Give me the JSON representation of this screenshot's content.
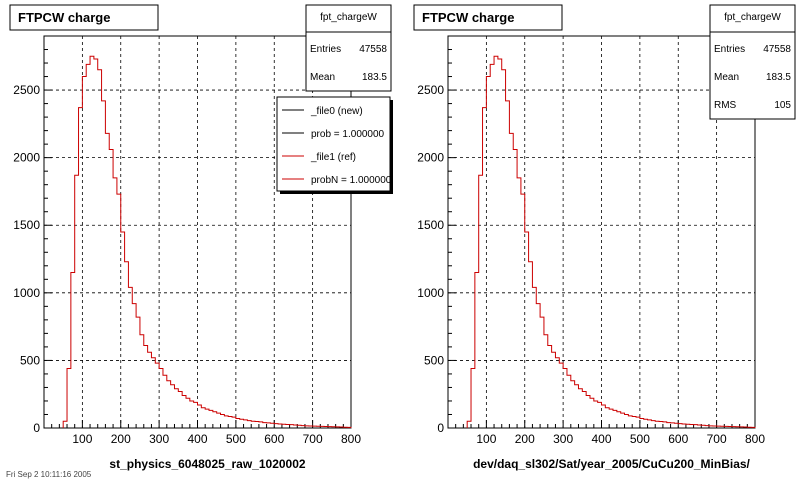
{
  "chart_data": [
    {
      "type": "histogram",
      "title": "FTPCW charge",
      "xlabel": "st_physics_6048025_raw_1020002",
      "ylabel": "",
      "xlim": [
        0,
        800
      ],
      "ylim": [
        0,
        2900
      ],
      "xticks": [
        100,
        200,
        300,
        400,
        500,
        600,
        700,
        800
      ],
      "yticks": [
        0,
        500,
        1000,
        1500,
        2000,
        2500
      ],
      "grid": true,
      "bin_width": 10,
      "series": [
        {
          "name": "_file1 (ref)",
          "color": "#cc0000",
          "x": [
            50,
            60,
            70,
            80,
            90,
            100,
            110,
            120,
            130,
            140,
            150,
            160,
            170,
            180,
            190,
            200,
            210,
            220,
            230,
            240,
            250,
            260,
            270,
            280,
            290,
            300,
            310,
            320,
            330,
            340,
            350,
            360,
            370,
            380,
            390,
            400,
            410,
            420,
            430,
            440,
            450,
            460,
            470,
            480,
            490,
            500,
            510,
            520,
            530,
            540,
            550,
            560,
            570,
            580,
            590,
            600,
            610,
            620,
            630,
            640,
            650,
            660,
            670,
            680,
            690,
            700,
            710,
            720,
            730,
            740,
            750,
            760,
            770,
            780,
            790
          ],
          "values": [
            50,
            440,
            1150,
            1870,
            2370,
            2600,
            2690,
            2750,
            2730,
            2650,
            2420,
            2180,
            2060,
            1850,
            1730,
            1450,
            1230,
            1040,
            920,
            820,
            690,
            610,
            560,
            520,
            480,
            440,
            390,
            350,
            320,
            290,
            270,
            240,
            220,
            200,
            190,
            170,
            150,
            140,
            130,
            120,
            110,
            100,
            90,
            85,
            80,
            70,
            65,
            60,
            55,
            50,
            48,
            45,
            40,
            38,
            35,
            32,
            30,
            28,
            26,
            25,
            22,
            20,
            18,
            16,
            15,
            14,
            13,
            12,
            11,
            10,
            9,
            8,
            7,
            6,
            5
          ]
        }
      ],
      "stats": {
        "name": "fpt_chargeW",
        "entries_label": "Entries",
        "entries": "47558",
        "mean_label": "Mean",
        "mean": "183.5"
      },
      "legend": {
        "placement": "top-right",
        "entries": [
          {
            "label": "_file0 (new)",
            "color": "#000000"
          },
          {
            "label": "prob = 1.000000",
            "color": "#000000"
          },
          {
            "label": "_file1 (ref)",
            "color": "#cc0000"
          },
          {
            "label": "probN = 1.000000",
            "color": "#cc0000"
          }
        ]
      }
    },
    {
      "type": "histogram",
      "title": "FTPCW charge",
      "xlabel": "dev/daq_sl302/Sat/year_2005/CuCu200_MinBias/",
      "ylabel": "",
      "xlim": [
        0,
        800
      ],
      "ylim": [
        0,
        2900
      ],
      "xticks": [
        100,
        200,
        300,
        400,
        500,
        600,
        700,
        800
      ],
      "yticks": [
        0,
        500,
        1000,
        1500,
        2000,
        2500
      ],
      "grid": true,
      "bin_width": 10,
      "series": [
        {
          "name": "",
          "color": "#cc0000",
          "x": [
            50,
            60,
            70,
            80,
            90,
            100,
            110,
            120,
            130,
            140,
            150,
            160,
            170,
            180,
            190,
            200,
            210,
            220,
            230,
            240,
            250,
            260,
            270,
            280,
            290,
            300,
            310,
            320,
            330,
            340,
            350,
            360,
            370,
            380,
            390,
            400,
            410,
            420,
            430,
            440,
            450,
            460,
            470,
            480,
            490,
            500,
            510,
            520,
            530,
            540,
            550,
            560,
            570,
            580,
            590,
            600,
            610,
            620,
            630,
            640,
            650,
            660,
            670,
            680,
            690,
            700,
            710,
            720,
            730,
            740,
            750,
            760,
            770,
            780,
            790
          ],
          "values": [
            50,
            440,
            1150,
            1870,
            2370,
            2600,
            2690,
            2750,
            2730,
            2650,
            2420,
            2180,
            2060,
            1850,
            1730,
            1450,
            1230,
            1040,
            920,
            820,
            690,
            610,
            560,
            520,
            480,
            440,
            390,
            350,
            320,
            290,
            270,
            240,
            220,
            200,
            190,
            170,
            150,
            140,
            130,
            120,
            110,
            100,
            90,
            85,
            80,
            70,
            65,
            60,
            55,
            50,
            48,
            45,
            40,
            38,
            35,
            32,
            30,
            28,
            26,
            25,
            22,
            20,
            18,
            16,
            15,
            14,
            13,
            12,
            11,
            10,
            9,
            8,
            7,
            6,
            5
          ]
        }
      ],
      "stats": {
        "name": "fpt_chargeW",
        "entries_label": "Entries",
        "entries": "47558",
        "mean_label": "Mean",
        "mean": "183.5",
        "rms_label": "RMS",
        "rms": "105"
      }
    }
  ],
  "footer": {
    "text": "Fri Sep 2 10:11:16 2005"
  }
}
